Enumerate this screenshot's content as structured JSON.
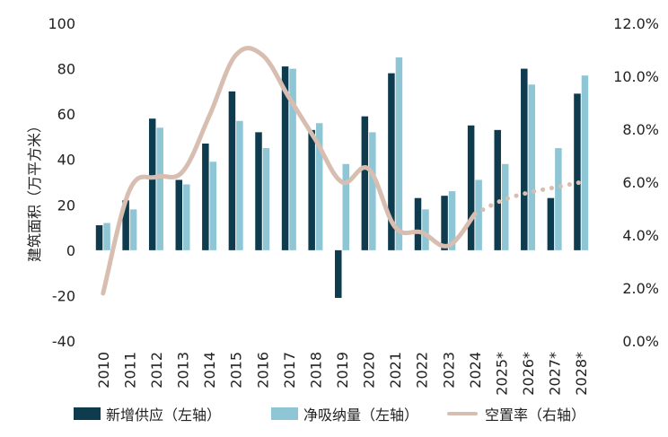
{
  "chart_data": {
    "type": "bar",
    "categories": [
      "2010",
      "2011",
      "2012",
      "2013",
      "2014",
      "2015",
      "2016",
      "2017",
      "2018",
      "2019",
      "2020",
      "2021",
      "2022",
      "2023",
      "2024",
      "2025*",
      "2026*",
      "2027*",
      "2028*"
    ],
    "series": [
      {
        "name": "新增供应（左轴）",
        "type": "bar",
        "axis": "left",
        "color": "#0f3b4e",
        "values": [
          11,
          22,
          58,
          31,
          47,
          70,
          52,
          81,
          53,
          -21,
          59,
          78,
          23,
          24,
          55,
          53,
          80,
          23,
          69
        ]
      },
      {
        "name": "净吸纳量（左轴）",
        "type": "bar",
        "axis": "left",
        "color": "#8fc6d6",
        "values": [
          12,
          18,
          54,
          29,
          39,
          57,
          45,
          80,
          56,
          38,
          52,
          85,
          18,
          26,
          31,
          38,
          73,
          45,
          77
        ]
      },
      {
        "name": "空置率（右轴）",
        "type": "line",
        "axis": "right",
        "color": "#d7beb0",
        "values": [
          1.8,
          5.7,
          6.2,
          6.4,
          8.5,
          10.8,
          10.8,
          9.2,
          7.6,
          6.0,
          6.5,
          4.3,
          4.1,
          3.6,
          4.8,
          5.3,
          5.6,
          5.8,
          6.0
        ],
        "dashed_from_index": 14
      }
    ],
    "ylabel": "建筑面积（万平方米）",
    "ylim": [
      -40,
      100
    ],
    "yticks": [
      "-40",
      "-20",
      "0",
      "20",
      "40",
      "60",
      "80",
      "100"
    ],
    "y2lim": [
      0,
      12
    ],
    "y2ticks": [
      "0.0%",
      "2.0%",
      "4.0%",
      "6.0%",
      "8.0%",
      "10.0%",
      "12.0%"
    ],
    "grid": false,
    "legend_position": "bottom"
  }
}
